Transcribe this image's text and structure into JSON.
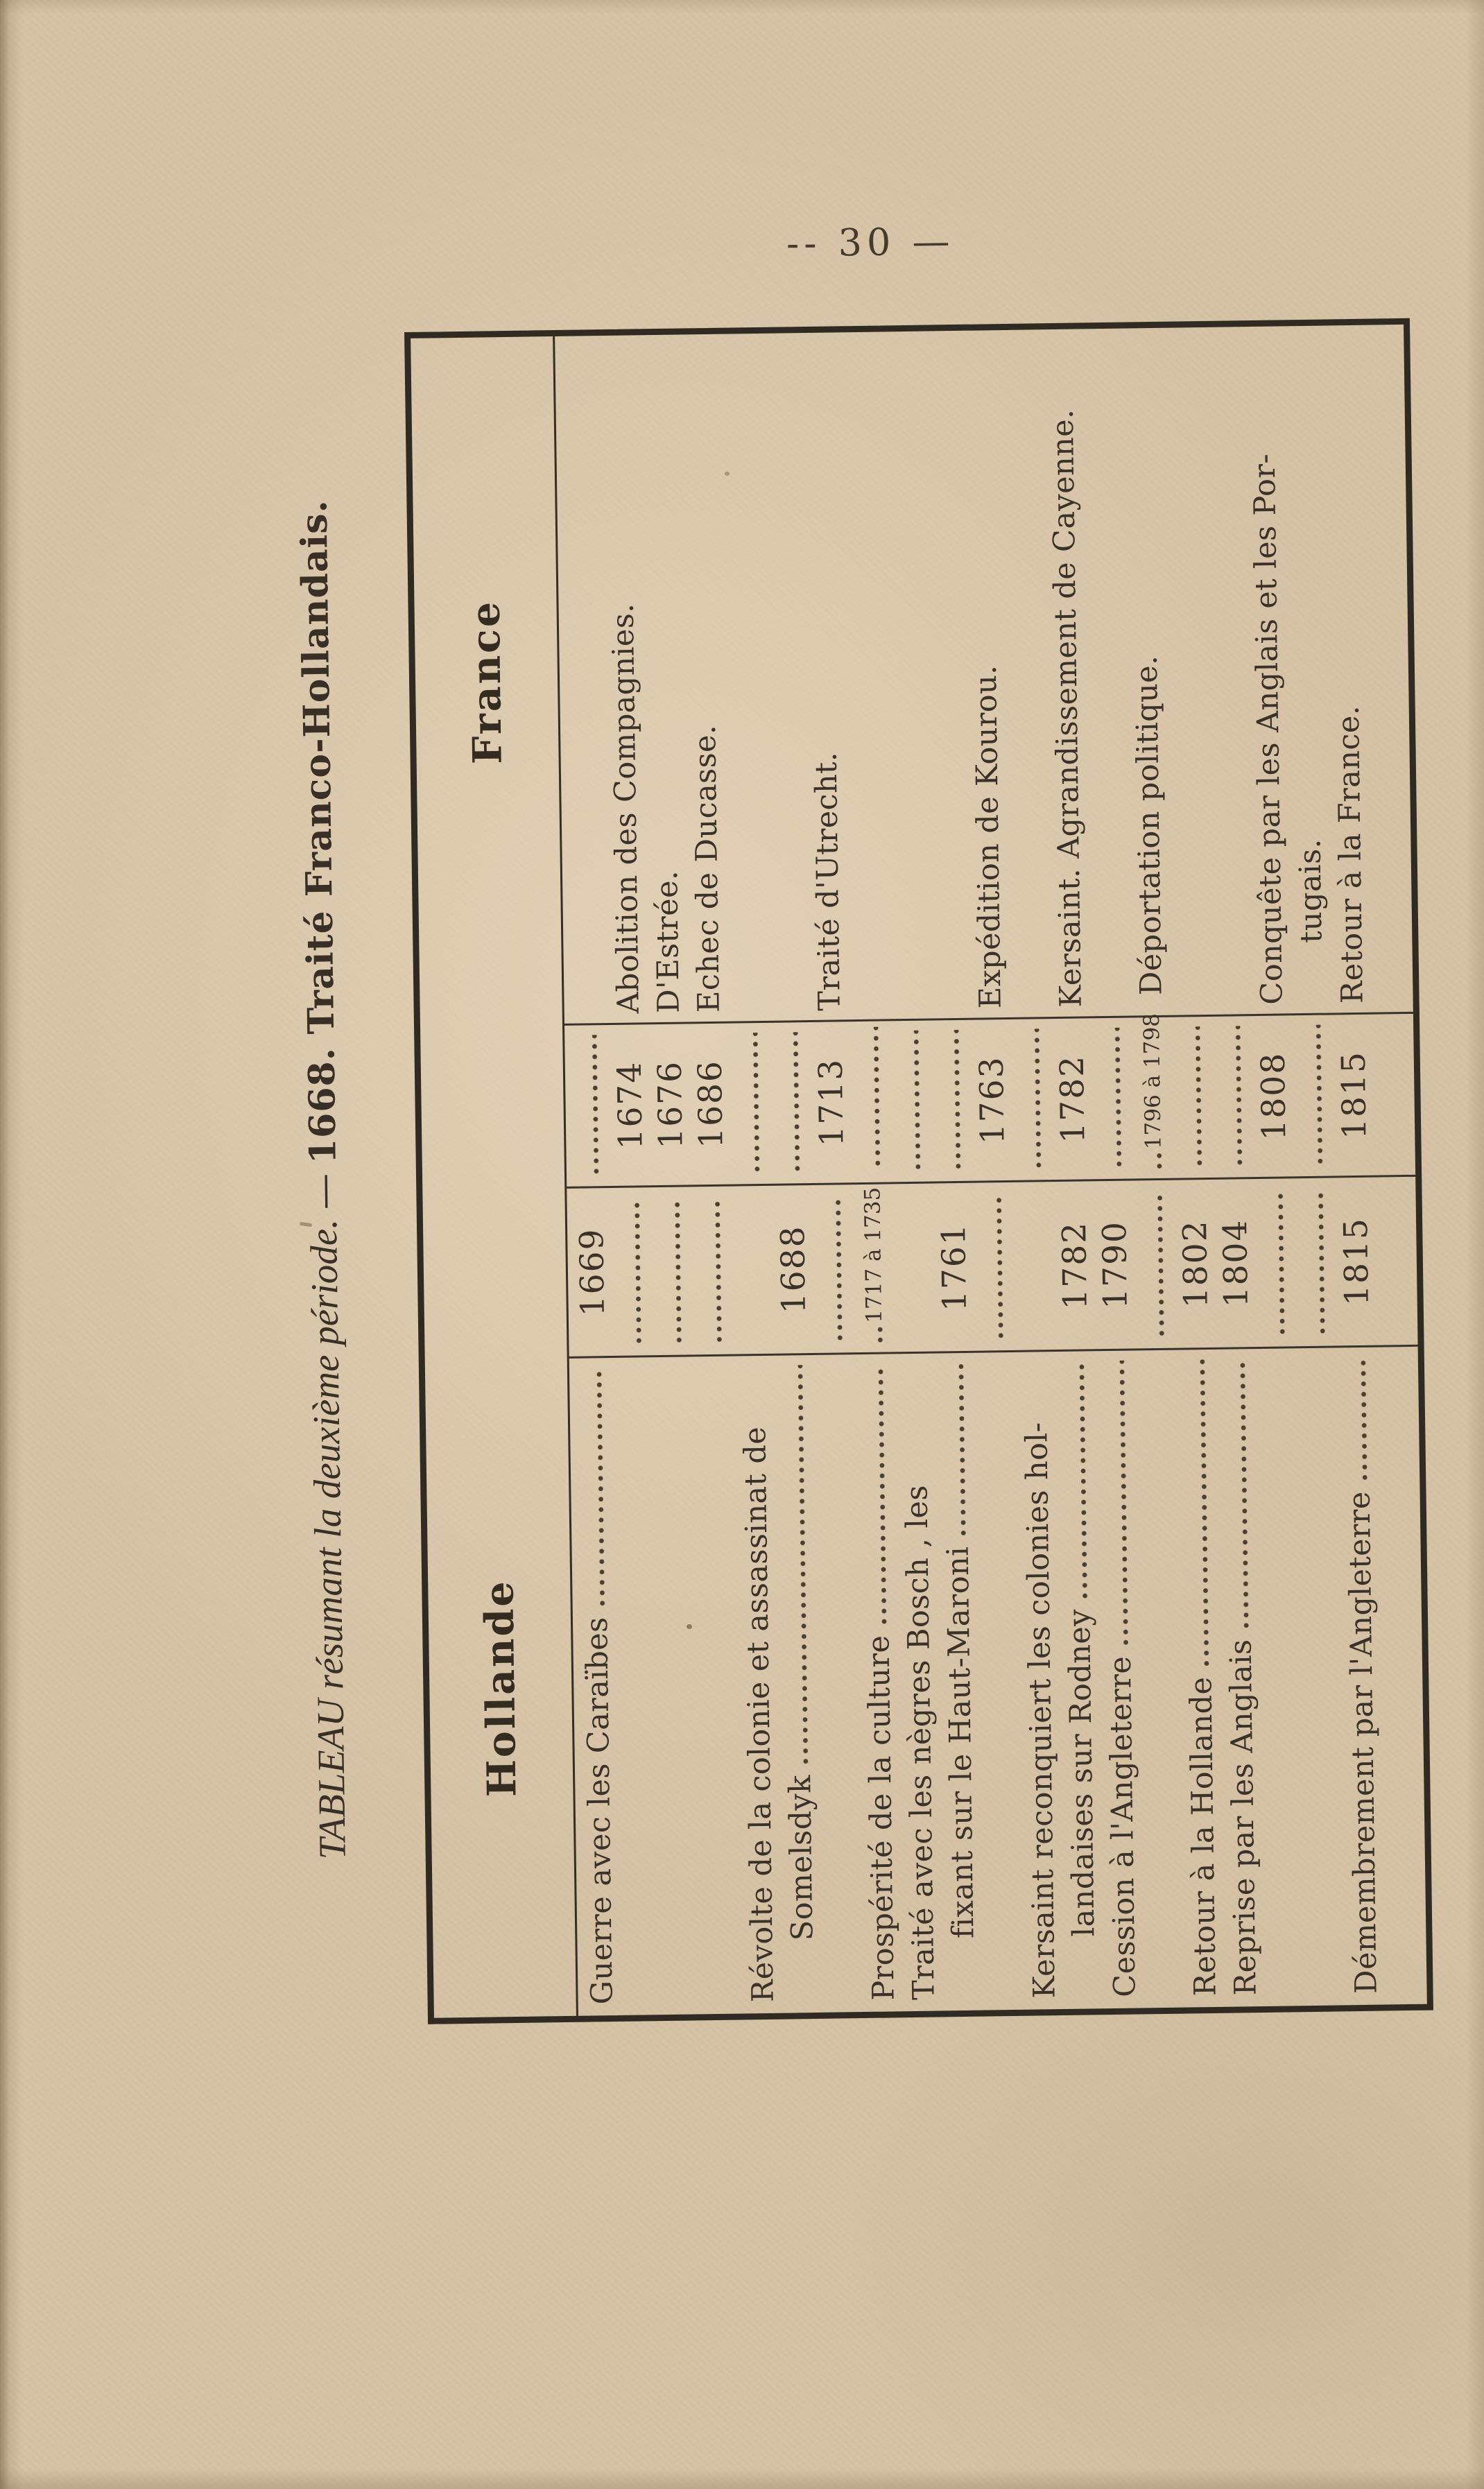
{
  "page": {
    "number": "-- 30 —"
  },
  "colors": {
    "paper": "#d5c1a4",
    "ink": "#3a3128",
    "rule": "#2f2a22"
  },
  "caption": {
    "italic": "TABLEAU résumant la deuxième période.",
    "dash": "—",
    "bold": "1668. Traité Franco-Hollandais."
  },
  "table": {
    "header_left": "Hollande",
    "header_right": "France",
    "rows": [
      {
        "h": "Guerre avec les Caraïbes",
        "h_dots": true,
        "hd": "1669",
        "fd_dots": true
      },
      {
        "hd_dots": true,
        "fd": "1674",
        "f": "Abolition des Compagnies."
      },
      {
        "hd_dots": true,
        "fd": "1676",
        "f": "D'Estrée."
      },
      {
        "hd_dots": true,
        "fd": "1686",
        "f": "Echec de Ducasse."
      },
      {
        "h": "Révolte de la colonie et assassinat de",
        "fd_dots": true
      },
      {
        "h": "Somelsdyk",
        "h_indent": true,
        "h_dots": true,
        "hd": "1688",
        "fd_dots": true
      },
      {
        "hd_dots": true,
        "fd": "1713",
        "f": "Traité d'Utrecht."
      },
      {
        "h": "Prospérité de la culture",
        "h_dots": true,
        "hd": "1717 à 1735",
        "hd_small": true,
        "fd_dots": true
      },
      {
        "h": "Traité avec les nègres Bosch , les",
        "fd_dots": true
      },
      {
        "h": "fixant sur le Haut-Maroni",
        "h_indent": true,
        "h_dots": true,
        "hd": "1761",
        "fd_dots": true
      },
      {
        "hd_dots": true,
        "fd": "1763",
        "f": "Expédition de Kourou."
      },
      {
        "h": "Kersaint reconquiert les colonies hol-",
        "fd_dots": true
      },
      {
        "h": "landaises sur Rodney",
        "h_indent": true,
        "h_dots": true,
        "hd": "1782",
        "fd": "1782",
        "f": "Kersaint. Agrandissement de Cayenne."
      },
      {
        "h": "Cession à l'Angleterre",
        "h_dots": true,
        "hd": "1790",
        "fd_dots": true
      },
      {
        "hd_dots": true,
        "fd": "1796 à 1798",
        "fd_small": true,
        "f": "Déportation politique."
      },
      {
        "h": "Retour à la Hollande",
        "h_dots": true,
        "hd": "1802",
        "fd_dots": true
      },
      {
        "h": "Reprise par les Anglais",
        "h_dots": true,
        "hd": "1804",
        "fd_dots": true
      },
      {
        "hd_dots": true,
        "fd": "1808",
        "f": "Conquête par les Anglais et les Por-"
      },
      {
        "hd_dots": true,
        "fd_dots": true,
        "f": "tugais.",
        "f_indent": true
      },
      {
        "h": "Démembrement par l'Angleterre",
        "h_dots": true,
        "hd": "1815",
        "fd": "1815",
        "f": "Retour à la France."
      }
    ]
  }
}
